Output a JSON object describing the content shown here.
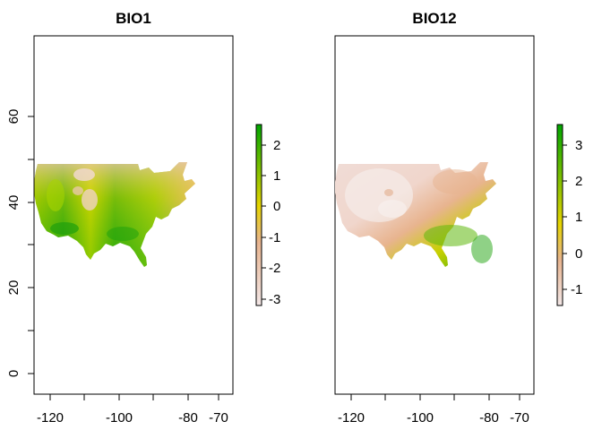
{
  "panels": [
    {
      "title": "BIO1",
      "x_ticks": [
        "-120",
        "-100",
        "-80",
        "-70"
      ],
      "y_ticks": [
        "0",
        "20",
        "40",
        "60"
      ],
      "legend_ticks": [
        "2",
        "1",
        "0",
        "-1",
        "-2",
        "-3"
      ]
    },
    {
      "title": "BIO12",
      "x_ticks": [
        "-120",
        "-100",
        "-80",
        "-70"
      ],
      "legend_ticks": [
        "3",
        "2",
        "1",
        "0",
        "-1"
      ]
    }
  ],
  "colors": {
    "low": "#f2e6e6",
    "mid_low": "#e8b48f",
    "mid": "#e6d400",
    "high": "#00a600"
  }
}
